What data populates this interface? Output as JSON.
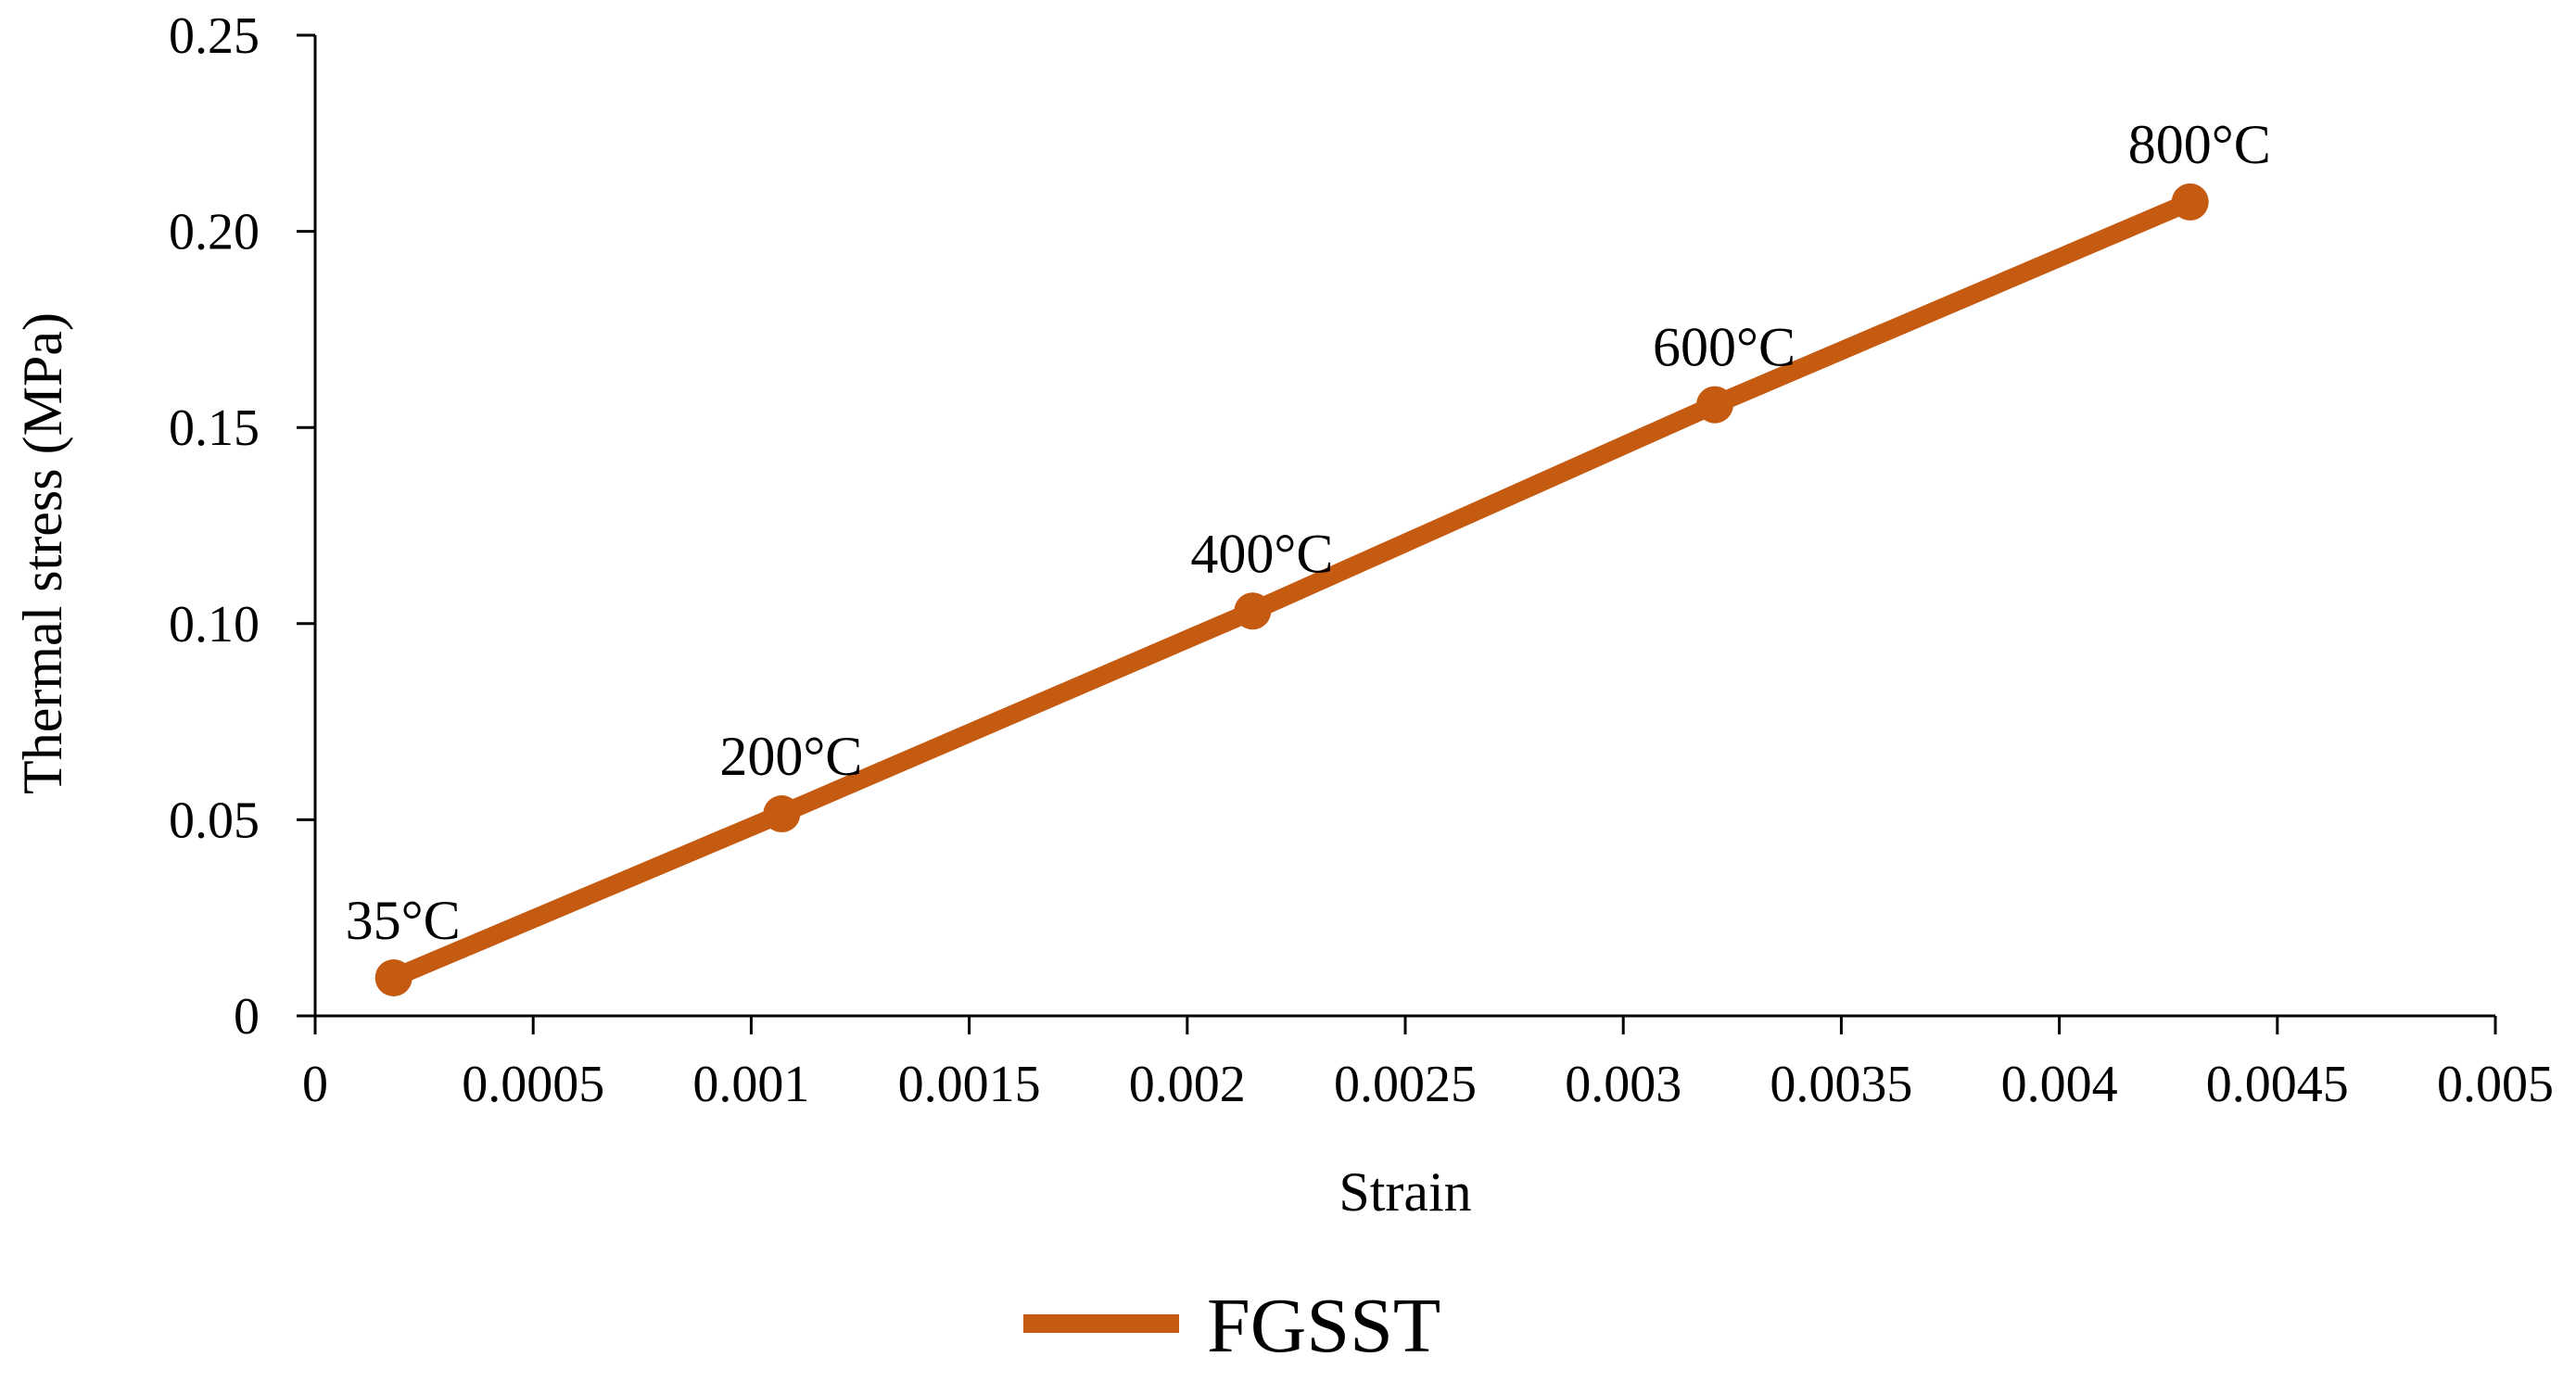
{
  "chart_data": {
    "type": "line",
    "xlabel": "Strain",
    "ylabel": "Thermal stress (MPa)",
    "xlim": [
      0,
      0.005
    ],
    "ylim": [
      0,
      0.25
    ],
    "x_ticks": [
      {
        "value": 0,
        "label": "0"
      },
      {
        "value": 0.0005,
        "label": "0.0005"
      },
      {
        "value": 0.001,
        "label": "0.001"
      },
      {
        "value": 0.0015,
        "label": "0.0015"
      },
      {
        "value": 0.002,
        "label": "0.002"
      },
      {
        "value": 0.0025,
        "label": "0.0025"
      },
      {
        "value": 0.003,
        "label": "0.003"
      },
      {
        "value": 0.0035,
        "label": "0.0035"
      },
      {
        "value": 0.004,
        "label": "0.004"
      },
      {
        "value": 0.0045,
        "label": "0.0045"
      },
      {
        "value": 0.005,
        "label": "0.005"
      }
    ],
    "y_ticks": [
      {
        "value": 0,
        "label": "0"
      },
      {
        "value": 0.05,
        "label": "0.05"
      },
      {
        "value": 0.1,
        "label": "0.10"
      },
      {
        "value": 0.15,
        "label": "0.15"
      },
      {
        "value": 0.2,
        "label": "0.20"
      },
      {
        "value": 0.25,
        "label": "0.25"
      }
    ],
    "grid": false,
    "legend_position": "bottom-center",
    "series": [
      {
        "name": "FGSST",
        "color": "#c55a11",
        "marker": "circle",
        "points": [
          {
            "x": 0.00018,
            "y": 0.0097,
            "label": "35°C"
          },
          {
            "x": 0.00107,
            "y": 0.0515,
            "label": "200°C"
          },
          {
            "x": 0.00215,
            "y": 0.1032,
            "label": "400°C"
          },
          {
            "x": 0.00321,
            "y": 0.1558,
            "label": "600°C"
          },
          {
            "x": 0.0043,
            "y": 0.2075,
            "label": "800°C"
          }
        ]
      }
    ]
  }
}
